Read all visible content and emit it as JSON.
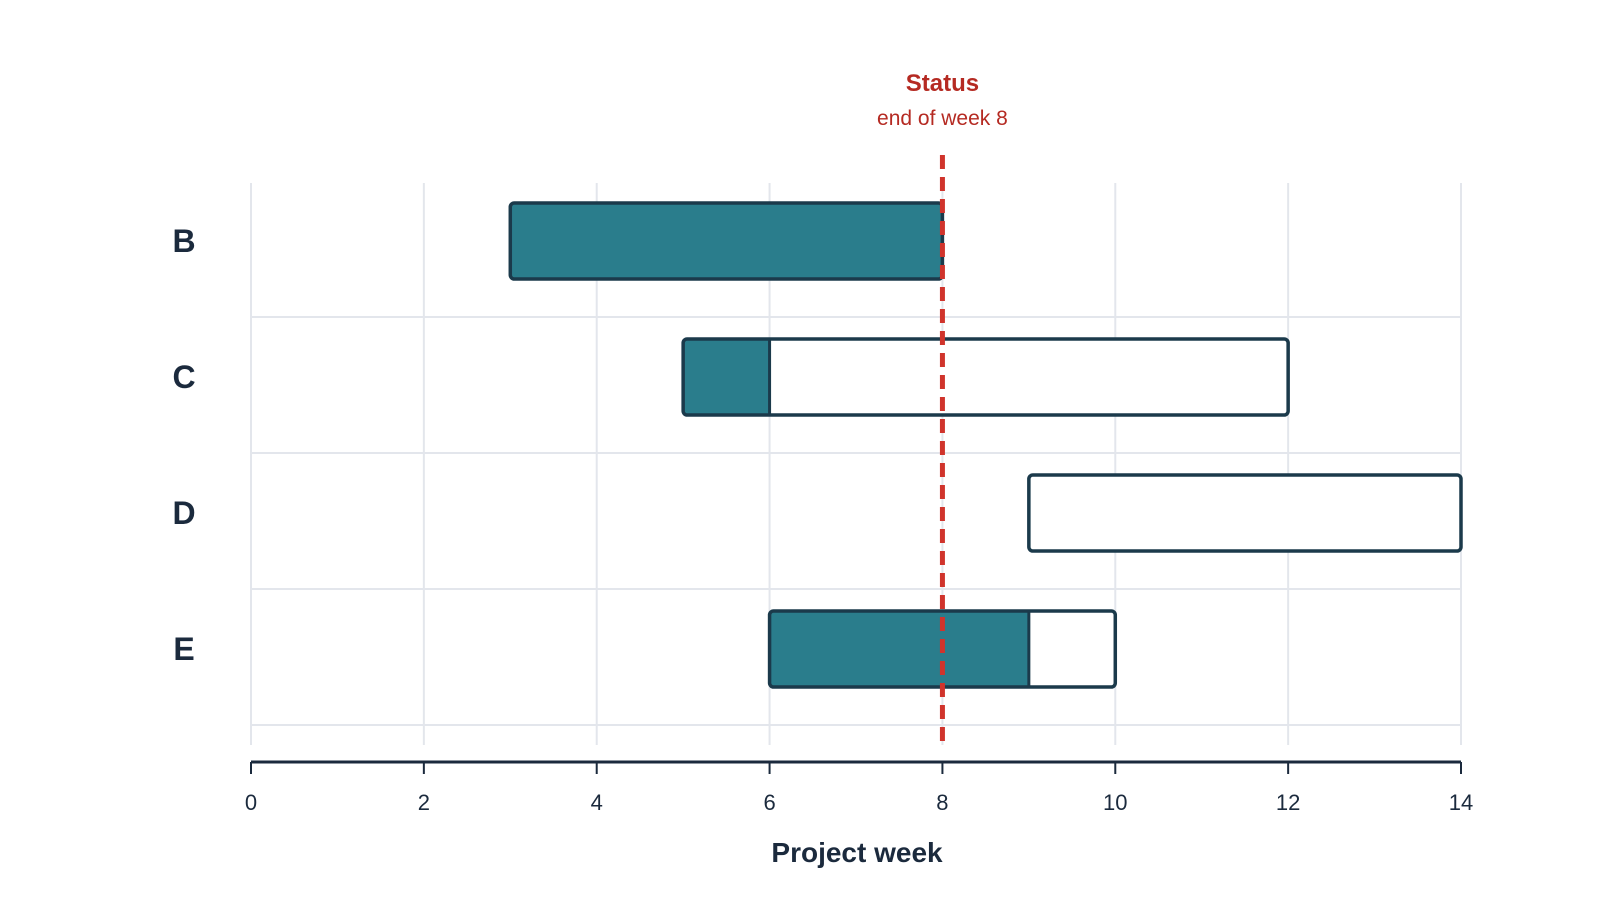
{
  "chart_data": {
    "type": "gantt",
    "xlabel": "Project week",
    "xlim": [
      0,
      14
    ],
    "xticks": [
      0,
      2,
      4,
      6,
      8,
      10,
      12,
      14
    ],
    "grid": true,
    "tasks": [
      {
        "name": "B",
        "start": 3,
        "end": 8,
        "progress_end": 8
      },
      {
        "name": "C",
        "start": 5,
        "end": 12,
        "progress_end": 6
      },
      {
        "name": "D",
        "start": 9,
        "end": 14,
        "progress_end": 9
      },
      {
        "name": "E",
        "start": 6,
        "end": 10,
        "progress_end": 9
      }
    ],
    "status_line": {
      "week": 8,
      "title": "Status",
      "subtitle": "end of week 8"
    },
    "colors": {
      "progress_fill": "#2a7d8c",
      "bar_outline": "#1b3a4b",
      "status_line": "#d0342c",
      "status_text": "#b52a22",
      "grid": "#e3e6ec",
      "axis": "#1b2a3d"
    }
  }
}
